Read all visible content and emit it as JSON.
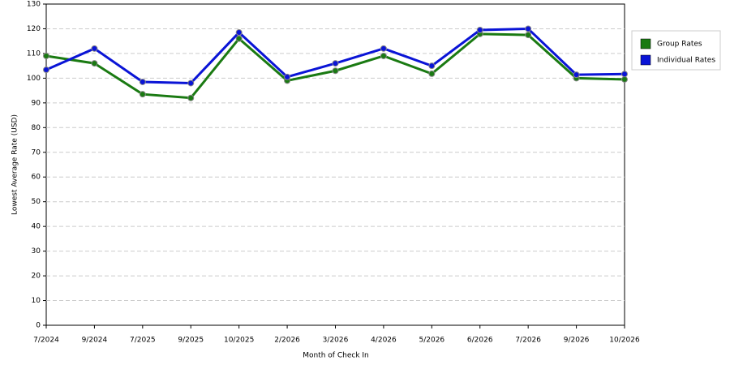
{
  "chart_data": {
    "type": "line",
    "x_label": "Month of Check In",
    "y_label": "Lowest Average Rate (USD)",
    "categories": [
      "7/2024",
      "9/2024",
      "7/2025",
      "9/2025",
      "10/2025",
      "2/2026",
      "3/2026",
      "4/2026",
      "5/2026",
      "6/2026",
      "7/2026",
      "9/2026",
      "10/2026"
    ],
    "series": [
      {
        "name": "Group Rates",
        "color": "#1a7a12",
        "values": [
          109,
          106,
          93.5,
          92,
          116,
          99,
          103,
          109,
          101.8,
          117.9,
          117.5,
          100,
          99.5
        ]
      },
      {
        "name": "Individual Rates",
        "color": "#0a14d6",
        "values": [
          103.4,
          112,
          98.5,
          98,
          118.5,
          100.5,
          106,
          112,
          105,
          119.5,
          120,
          101.4,
          101.7
        ]
      }
    ],
    "ylim": [
      0,
      130
    ],
    "yticks": [
      0,
      10,
      20,
      30,
      40,
      50,
      60,
      70,
      80,
      90,
      100,
      110,
      120,
      130
    ],
    "grid": true
  }
}
